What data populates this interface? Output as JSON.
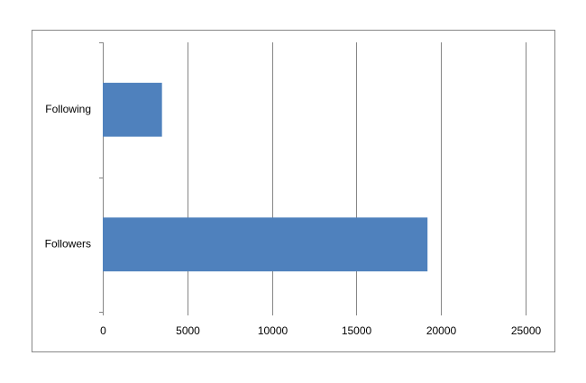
{
  "chart_data": {
    "type": "bar",
    "orientation": "horizontal",
    "categories": [
      "Following",
      "Followers"
    ],
    "values": [
      3500,
      19200
    ],
    "color": "#4f81bd",
    "xlim": [
      0,
      25000
    ],
    "xticks": [
      0,
      5000,
      10000,
      15000,
      20000,
      25000
    ],
    "grid": true
  }
}
